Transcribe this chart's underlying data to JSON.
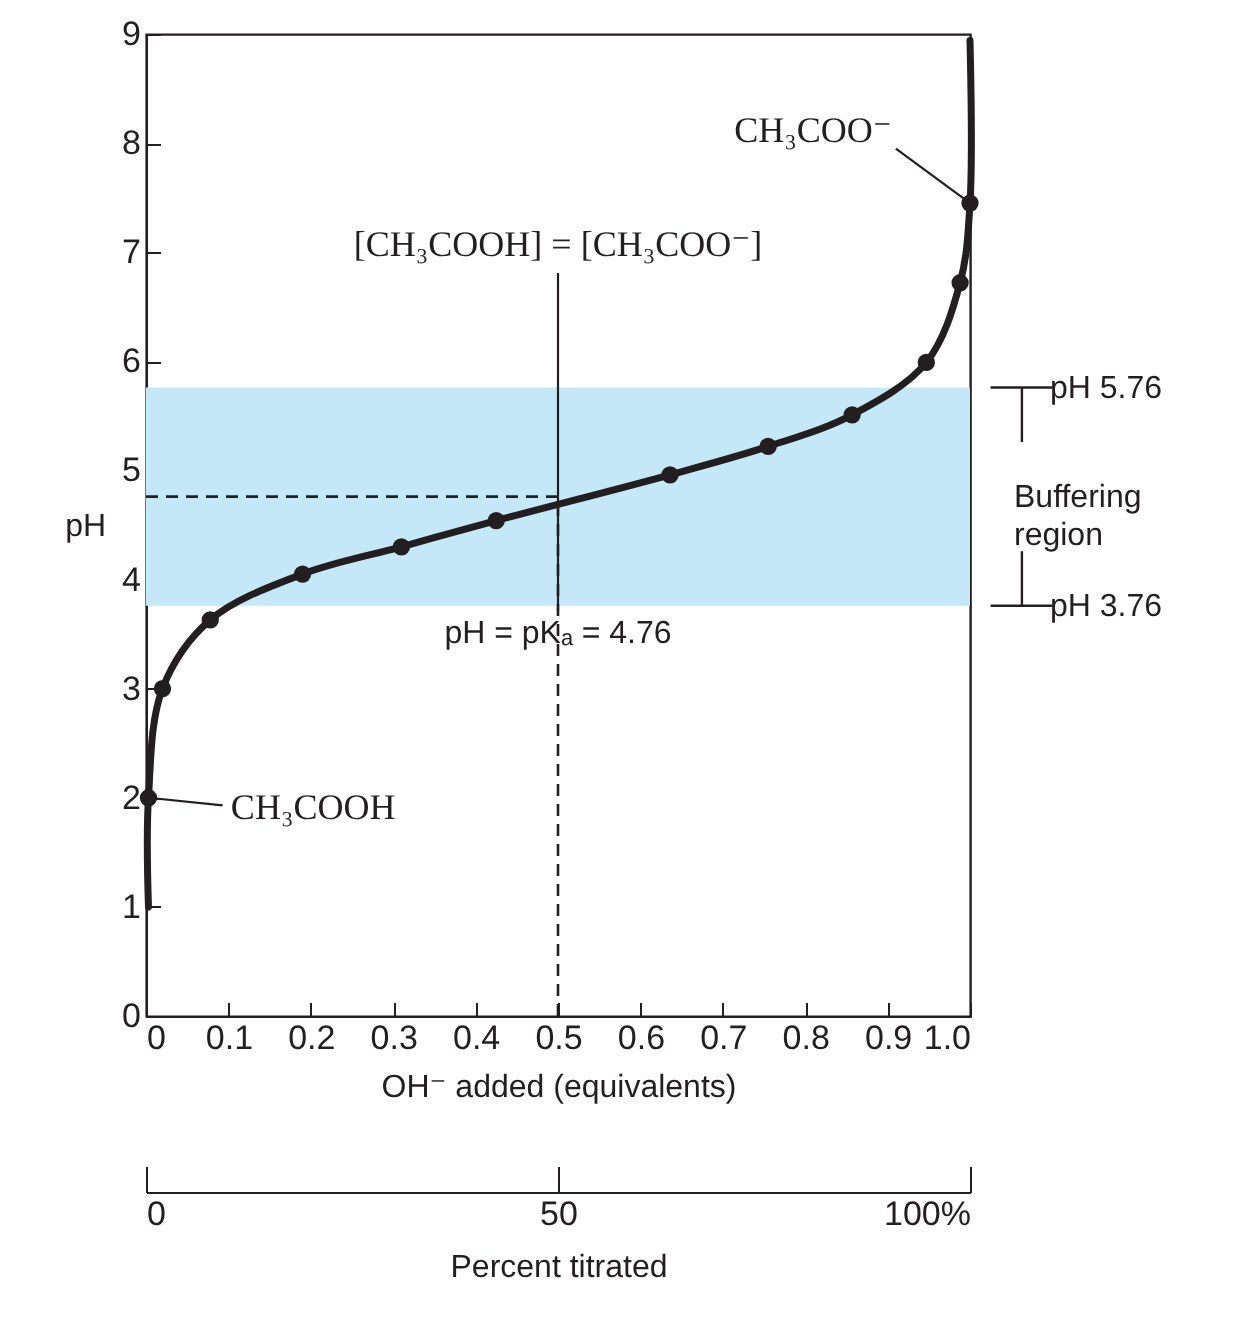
{
  "chart_data": {
    "type": "line",
    "xlabel": "OH⁻ added (equivalents)",
    "ylabel": "pH",
    "x2label": "Percent titrated",
    "x2lim": [
      0,
      100
    ],
    "x2ticks": [
      0,
      50,
      {
        "value": 100,
        "label": "100%"
      }
    ],
    "series": [
      {
        "color": "#231f20",
        "marker": "none",
        "x": [
          0.003,
          0.003,
          0.02,
          0.078,
          0.19,
          0.31,
          0.425,
          0.636,
          0.755,
          0.857,
          0.947,
          0.988,
          1.0,
          1.0
        ],
        "values": [
          1.0,
          2.0,
          3.0,
          3.63,
          4.05,
          4.3,
          4.54,
          4.96,
          5.22,
          5.51,
          5.99,
          6.72,
          7.45,
          8.94
        ]
      },
      {
        "type": "scatter",
        "color": "#231f20",
        "marker": "circle",
        "x": [
          0.003,
          0.02,
          0.078,
          0.19,
          0.31,
          0.425,
          0.636,
          0.755,
          0.857,
          0.947,
          0.988,
          1.0
        ],
        "values": [
          2.0,
          3.0,
          3.63,
          4.05,
          4.3,
          4.54,
          4.96,
          5.22,
          5.51,
          5.99,
          6.72,
          7.45
        ]
      }
    ],
    "xlim": [
      0,
      1.0
    ],
    "xticks": [
      0,
      0.1,
      0.2,
      0.3,
      0.4,
      0.5,
      0.6,
      0.7,
      0.8,
      0.9,
      {
        "value": 1.0,
        "label": "1.0"
      }
    ],
    "ylim": [
      0,
      9
    ],
    "yticks": [
      0,
      1,
      2,
      3,
      4,
      5,
      6,
      7,
      8,
      9
    ],
    "bands": [
      {
        "axis": "y",
        "from": 3.76,
        "to": 5.76,
        "label": "Buffering region",
        "color": "#c4e8f8"
      }
    ],
    "ref_lines": [
      {
        "axis": "y",
        "value": 4.76,
        "line_style": "dashed"
      },
      {
        "axis": "x",
        "value": 0.5,
        "line_style": "dashed"
      }
    ],
    "annotations": [
      {
        "text": "[CH₃COOH] = [CH₃COO⁻]",
        "x": 0.5,
        "y": 4.76
      },
      {
        "text": "pH = pKₐ = 4.76",
        "x": 0.5,
        "y": 4.76
      },
      {
        "text": "CH₃COOH",
        "x": 0.003,
        "y": 2.0
      },
      {
        "text": "CH₃COO⁻",
        "x": 1.0,
        "y": 7.45
      },
      "pH 5.76",
      "pH 3.76"
    ]
  }
}
